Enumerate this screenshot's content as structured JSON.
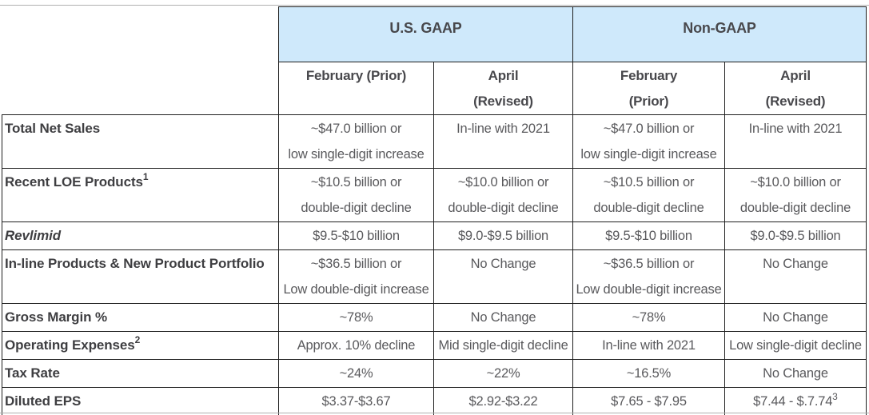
{
  "colors": {
    "header_bg": "#cfe9fb",
    "border": "#1f1f1f",
    "label_text": "#3e3e41",
    "value_text": "#59595c",
    "header_text": "#48484c",
    "rule": "#b0b0b0"
  },
  "table": {
    "group_headers": [
      {
        "label": "U.S. GAAP"
      },
      {
        "label": "Non-GAAP"
      }
    ],
    "column_headers": [
      {
        "label": "February (Prior)"
      },
      {
        "label": "April\n(Revised)"
      },
      {
        "label": "February\n(Prior)"
      },
      {
        "label": "April\n(Revised)"
      }
    ],
    "rows": [
      {
        "label": "Total Net Sales",
        "label_sup": "",
        "italic": false,
        "cells": [
          {
            "text": "~$47.0 billion or\nlow single-digit increase",
            "sup": ""
          },
          {
            "text": "In-line with 2021",
            "sup": ""
          },
          {
            "text": "~$47.0 billion or\nlow single-digit increase",
            "sup": ""
          },
          {
            "text": "In-line with 2021",
            "sup": ""
          }
        ]
      },
      {
        "label": "Recent LOE Products",
        "label_sup": "1",
        "italic": false,
        "cells": [
          {
            "text": "~$10.5 billion or\ndouble-digit decline",
            "sup": ""
          },
          {
            "text": "~$10.0 billion or\ndouble-digit decline",
            "sup": ""
          },
          {
            "text": "~$10.5 billion or\ndouble-digit decline",
            "sup": ""
          },
          {
            "text": "~$10.0 billion or\ndouble-digit decline",
            "sup": ""
          }
        ]
      },
      {
        "label": "Revlimid",
        "label_sup": "",
        "italic": true,
        "cells": [
          {
            "text": "$9.5-$10 billion",
            "sup": ""
          },
          {
            "text": "$9.0-$9.5 billion",
            "sup": ""
          },
          {
            "text": "$9.5-$10 billion",
            "sup": ""
          },
          {
            "text": "$9.0-$9.5 billion",
            "sup": ""
          }
        ]
      },
      {
        "label": "In-line Products & New Product Portfolio",
        "label_sup": "",
        "italic": false,
        "cells": [
          {
            "text": "~$36.5 billion or\nLow double-digit increase",
            "sup": ""
          },
          {
            "text": "No Change",
            "sup": ""
          },
          {
            "text": "~$36.5 billion or\nLow double-digit increase",
            "sup": ""
          },
          {
            "text": "No Change",
            "sup": ""
          }
        ]
      },
      {
        "label": "Gross Margin %",
        "label_sup": "",
        "italic": false,
        "cells": [
          {
            "text": "~78%",
            "sup": ""
          },
          {
            "text": "No Change",
            "sup": ""
          },
          {
            "text": "~78%",
            "sup": ""
          },
          {
            "text": "No Change",
            "sup": ""
          }
        ]
      },
      {
        "label": "Operating Expenses",
        "label_sup": "2",
        "italic": false,
        "cells": [
          {
            "text": "Approx. 10% decline",
            "sup": ""
          },
          {
            "text": "Mid single-digit decline",
            "sup": ""
          },
          {
            "text": "In-line with 2021",
            "sup": ""
          },
          {
            "text": "Low single-digit decline",
            "sup": ""
          }
        ]
      },
      {
        "label": "Tax Rate",
        "label_sup": "",
        "italic": false,
        "cells": [
          {
            "text": "~24%",
            "sup": ""
          },
          {
            "text": "~22%",
            "sup": ""
          },
          {
            "text": "~16.5%",
            "sup": ""
          },
          {
            "text": "No Change",
            "sup": ""
          }
        ]
      },
      {
        "label": "Diluted EPS",
        "label_sup": "",
        "italic": false,
        "cells": [
          {
            "text": "$3.37-$3.67",
            "sup": ""
          },
          {
            "text": "$2.92-$3.22",
            "sup": ""
          },
          {
            "text": "$7.65 - $7.95",
            "sup": ""
          },
          {
            "text": "$7.44 - $.7.74",
            "sup": "3"
          }
        ]
      }
    ]
  }
}
